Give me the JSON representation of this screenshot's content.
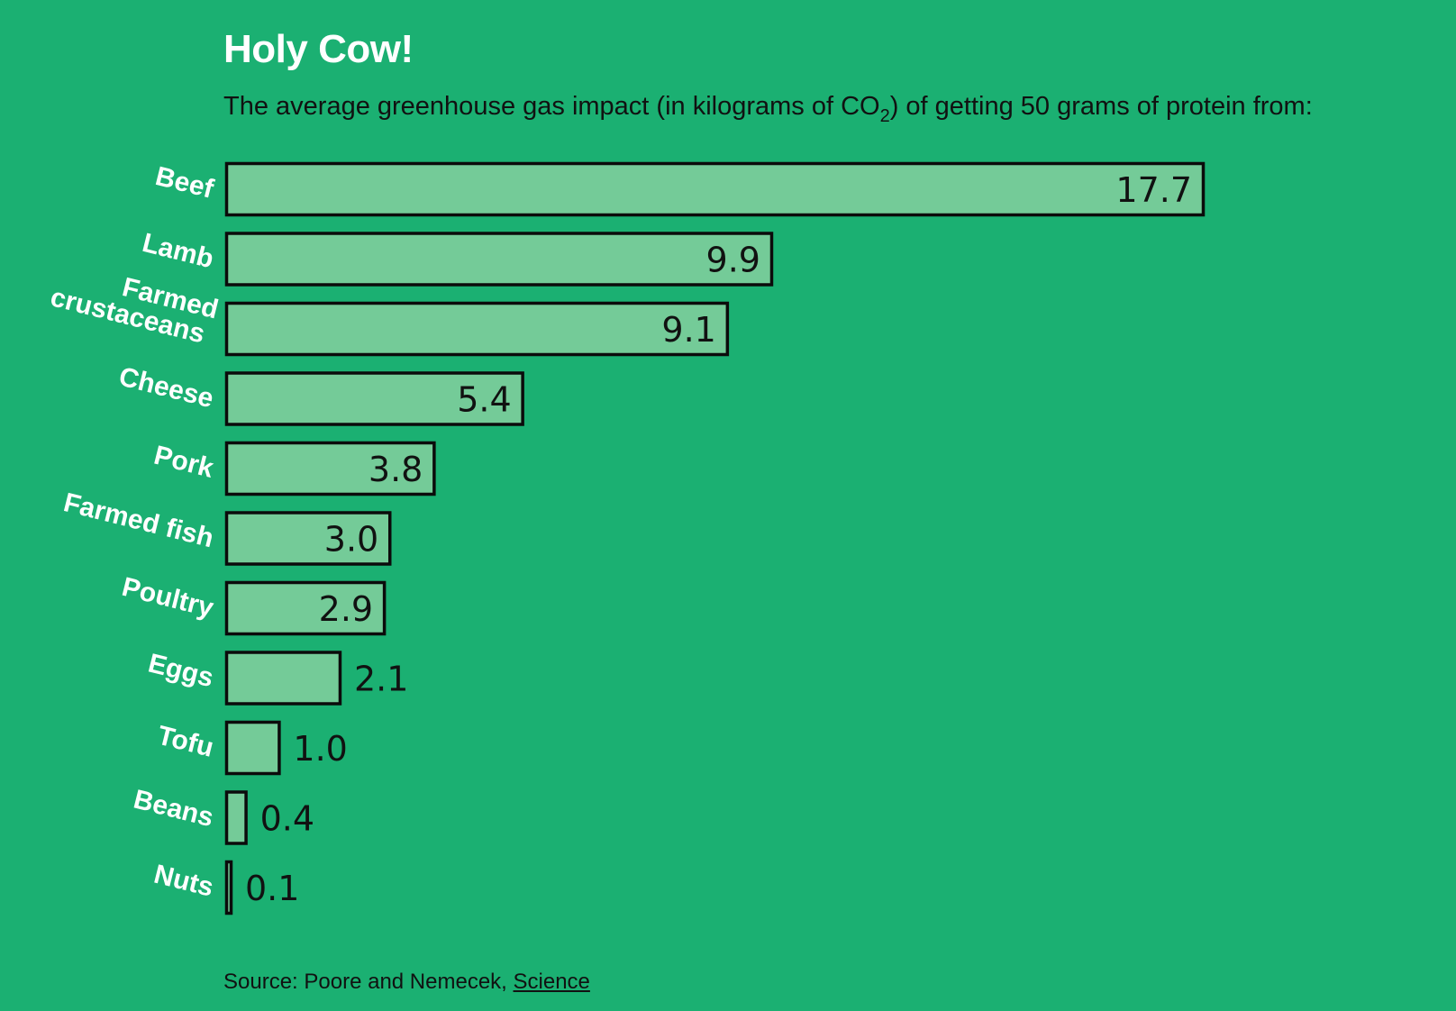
{
  "chart_data": {
    "type": "bar",
    "orientation": "horizontal",
    "title": "Holy Cow!",
    "subtitle": {
      "before": "The average greenhouse gas impact (in kilograms of CO",
      "subscript": "2",
      "after": ") of getting 50 grams of protein from:"
    },
    "categories": [
      "Beef",
      "Lamb",
      "Farmed crustaceans",
      "Cheese",
      "Pork",
      "Farmed fish",
      "Poultry",
      "Eggs",
      "Tofu",
      "Beans",
      "Nuts"
    ],
    "values": [
      17.7,
      9.9,
      9.1,
      5.4,
      3.8,
      3.0,
      2.9,
      2.1,
      1.0,
      0.4,
      0.1
    ],
    "value_labels": [
      "17.7",
      "9.9",
      "9.1",
      "5.4",
      "3.8",
      "3.0",
      "2.9",
      "2.1",
      "1.0",
      "0.4",
      "0.1"
    ],
    "xlim": [
      0,
      17.7
    ],
    "grid": false,
    "legend": "none"
  },
  "source": {
    "prefix": "Source: Poore and Nemecek, ",
    "link_text": "Science"
  },
  "colors": {
    "background": "#1bb072",
    "bar_fill": "#74cb98",
    "bar_stroke": "#0b0b0b",
    "label_color": "#ffffff",
    "value_color": "#111111"
  }
}
